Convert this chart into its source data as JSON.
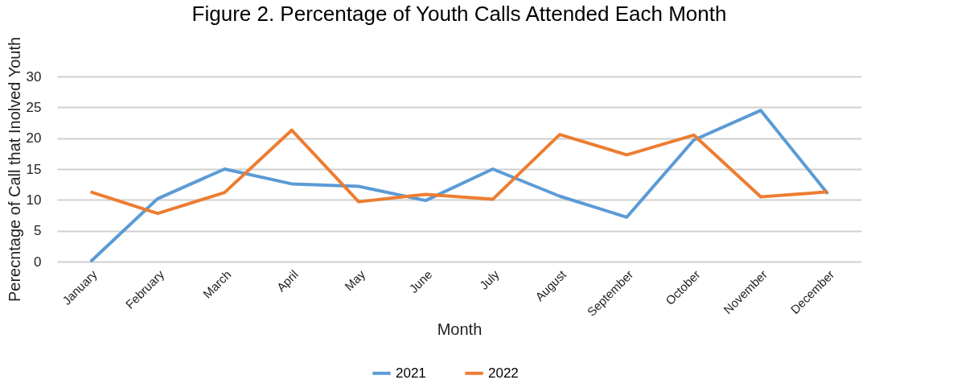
{
  "chart_data": {
    "type": "line",
    "title": "Figure 2. Percentage of Youth Calls Attended Each Month",
    "xlabel": "Month",
    "ylabel": "Perecntage of Call that Inolved Youth",
    "categories": [
      "January",
      "February",
      "March",
      "April",
      "May",
      "June",
      "July",
      "August",
      "September",
      "October",
      "November",
      "December"
    ],
    "series": [
      {
        "name": "2021",
        "color": "#5b9bd5",
        "values": [
          0,
          10.2,
          15,
          12.6,
          12.2,
          9.9,
          15,
          10.6,
          7.2,
          19.7,
          24.5,
          11
        ]
      },
      {
        "name": "2022",
        "color": "#ed7d31",
        "values": [
          11.3,
          7.8,
          11.2,
          21.3,
          9.7,
          10.9,
          10.1,
          20.6,
          17.3,
          20.5,
          10.5,
          11.3
        ]
      }
    ],
    "ylim": [
      0,
      30
    ],
    "yticks": [
      0,
      5,
      10,
      15,
      20,
      25,
      30
    ],
    "grid": "y",
    "legend": "bottom",
    "marker": "none",
    "line_style": "solid"
  }
}
